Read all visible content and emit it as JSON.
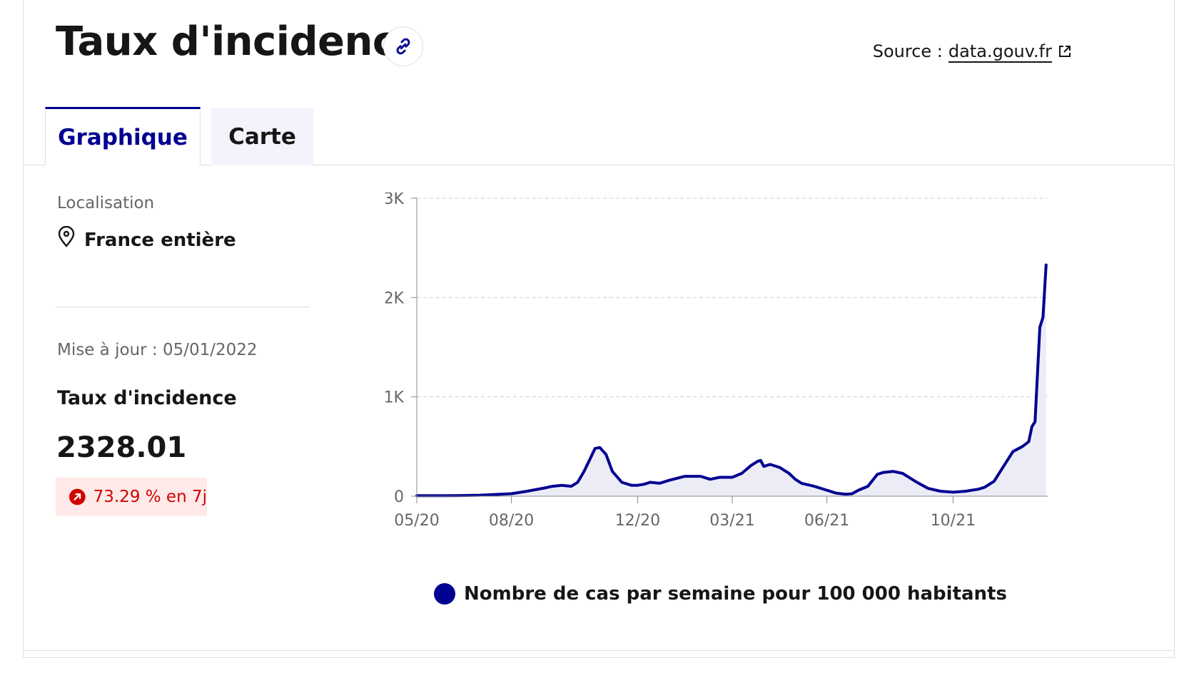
{
  "header": {
    "title": "Taux d'incidence",
    "source_label": "Source :",
    "source_link": "data.gouv.fr"
  },
  "tabs": [
    {
      "label": "Graphique",
      "active": true
    },
    {
      "label": "Carte",
      "active": false
    }
  ],
  "sidebar": {
    "location_label": "Localisation",
    "location_value": "France entière",
    "update_label": "Mise à jour : 05/01/2022",
    "metric_name": "Taux d'incidence",
    "metric_value": "2328.01",
    "change_text": "73.29 % en 7j"
  },
  "colors": {
    "accent": "#000091",
    "fill": "#ececf6",
    "badge_bg": "#ffe9e9",
    "badge_text": "#ce0500"
  },
  "chart_data": {
    "type": "area",
    "x_tick_labels": [
      "05/20",
      "08/20",
      "12/20",
      "03/21",
      "06/21",
      "10/21"
    ],
    "x_ticks_months": [
      0,
      3,
      7,
      10,
      13,
      17
    ],
    "y_tick_labels": [
      "0",
      "1K",
      "2K",
      "3K"
    ],
    "y_ticks": [
      0,
      1000,
      2000,
      3000
    ],
    "ylim": [
      0,
      3000
    ],
    "xlim_months": [
      0,
      20
    ],
    "grid": true,
    "legend": "Nombre de cas par semaine pour 100 000 habitants",
    "legend_position": "bottom",
    "series": [
      {
        "name": "Nombre de cas par semaine pour 100 000 habitants",
        "x_months": [
          0,
          1,
          2,
          3,
          3.5,
          4,
          4.3,
          4.6,
          4.9,
          5.1,
          5.3,
          5.5,
          5.65,
          5.8,
          6.0,
          6.2,
          6.5,
          6.8,
          7.0,
          7.2,
          7.4,
          7.7,
          8.0,
          8.5,
          9.0,
          9.3,
          9.6,
          10.0,
          10.3,
          10.6,
          10.8,
          10.9,
          11.0,
          11.2,
          11.5,
          11.8,
          12.0,
          12.2,
          12.6,
          13.0,
          13.3,
          13.6,
          13.8,
          14.0,
          14.3,
          14.6,
          14.8,
          15.1,
          15.4,
          15.8,
          16.2,
          16.6,
          17.0,
          17.4,
          17.8,
          18.0,
          18.3,
          18.6,
          18.9,
          19.2,
          19.4,
          19.5,
          19.6,
          19.75,
          19.85,
          19.95
        ],
        "values": [
          5,
          5,
          10,
          25,
          50,
          80,
          100,
          110,
          100,
          140,
          250,
          380,
          480,
          490,
          420,
          250,
          140,
          110,
          110,
          120,
          140,
          130,
          160,
          200,
          200,
          170,
          190,
          190,
          230,
          310,
          350,
          360,
          300,
          320,
          290,
          230,
          170,
          130,
          100,
          60,
          30,
          20,
          25,
          60,
          100,
          220,
          240,
          250,
          230,
          150,
          80,
          50,
          40,
          50,
          70,
          90,
          150,
          300,
          450,
          500,
          550,
          700,
          750,
          1700,
          1800,
          2328
        ]
      }
    ]
  }
}
